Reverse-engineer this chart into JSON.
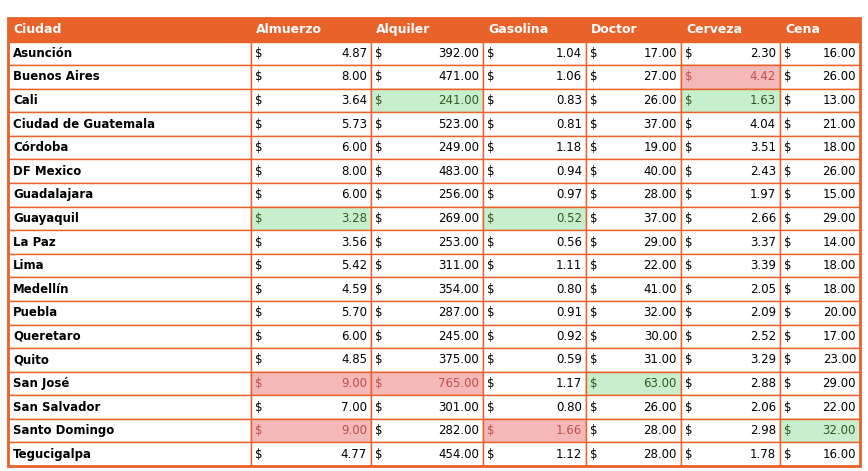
{
  "col_headers": [
    "Ciudad",
    "Almuerzo",
    "Alquiler",
    "Gasolina",
    "Doctor",
    "Cerveza",
    "Cena"
  ],
  "rows": [
    {
      "city": "Asunción",
      "almuerzo": 4.87,
      "alquiler": 392.0,
      "gasolina": 1.04,
      "doctor": 17.0,
      "cerveza": 2.3,
      "cena": 16.0,
      "bg_almuerzo": null,
      "bg_alquiler": null,
      "bg_gasolina": null,
      "bg_doctor": null,
      "bg_cerveza": null,
      "bg_cena": null
    },
    {
      "city": "Buenos Aires",
      "almuerzo": 8.0,
      "alquiler": 471.0,
      "gasolina": 1.06,
      "doctor": 27.0,
      "cerveza": 4.42,
      "cena": 26.0,
      "bg_almuerzo": null,
      "bg_alquiler": null,
      "bg_gasolina": null,
      "bg_doctor": null,
      "bg_cerveza": "#f4b8b8",
      "bg_cena": null
    },
    {
      "city": "Cali",
      "almuerzo": 3.64,
      "alquiler": 241.0,
      "gasolina": 0.83,
      "doctor": 26.0,
      "cerveza": 1.63,
      "cena": 13.0,
      "bg_almuerzo": null,
      "bg_alquiler": "#c6efce",
      "bg_gasolina": null,
      "bg_doctor": null,
      "bg_cerveza": "#c6efce",
      "bg_cena": null
    },
    {
      "city": "Ciudad de Guatemala",
      "almuerzo": 5.73,
      "alquiler": 523.0,
      "gasolina": 0.81,
      "doctor": 37.0,
      "cerveza": 4.04,
      "cena": 21.0,
      "bg_almuerzo": null,
      "bg_alquiler": null,
      "bg_gasolina": null,
      "bg_doctor": null,
      "bg_cerveza": null,
      "bg_cena": null
    },
    {
      "city": "Córdoba",
      "almuerzo": 6.0,
      "alquiler": 249.0,
      "gasolina": 1.18,
      "doctor": 19.0,
      "cerveza": 3.51,
      "cena": 18.0,
      "bg_almuerzo": null,
      "bg_alquiler": null,
      "bg_gasolina": null,
      "bg_doctor": null,
      "bg_cerveza": null,
      "bg_cena": null
    },
    {
      "city": "DF Mexico",
      "almuerzo": 8.0,
      "alquiler": 483.0,
      "gasolina": 0.94,
      "doctor": 40.0,
      "cerveza": 2.43,
      "cena": 26.0,
      "bg_almuerzo": null,
      "bg_alquiler": null,
      "bg_gasolina": null,
      "bg_doctor": null,
      "bg_cerveza": null,
      "bg_cena": null
    },
    {
      "city": "Guadalajara",
      "almuerzo": 6.0,
      "alquiler": 256.0,
      "gasolina": 0.97,
      "doctor": 28.0,
      "cerveza": 1.97,
      "cena": 15.0,
      "bg_almuerzo": null,
      "bg_alquiler": null,
      "bg_gasolina": null,
      "bg_doctor": null,
      "bg_cerveza": null,
      "bg_cena": null
    },
    {
      "city": "Guayaquil",
      "almuerzo": 3.28,
      "alquiler": 269.0,
      "gasolina": 0.52,
      "doctor": 37.0,
      "cerveza": 2.66,
      "cena": 29.0,
      "bg_almuerzo": "#c6efce",
      "bg_alquiler": null,
      "bg_gasolina": "#c6efce",
      "bg_doctor": null,
      "bg_cerveza": null,
      "bg_cena": null
    },
    {
      "city": "La Paz",
      "almuerzo": 3.56,
      "alquiler": 253.0,
      "gasolina": 0.56,
      "doctor": 29.0,
      "cerveza": 3.37,
      "cena": 14.0,
      "bg_almuerzo": null,
      "bg_alquiler": null,
      "bg_gasolina": null,
      "bg_doctor": null,
      "bg_cerveza": null,
      "bg_cena": null
    },
    {
      "city": "Lima",
      "almuerzo": 5.42,
      "alquiler": 311.0,
      "gasolina": 1.11,
      "doctor": 22.0,
      "cerveza": 3.39,
      "cena": 18.0,
      "bg_almuerzo": null,
      "bg_alquiler": null,
      "bg_gasolina": null,
      "bg_doctor": null,
      "bg_cerveza": null,
      "bg_cena": null
    },
    {
      "city": "Medellín",
      "almuerzo": 4.59,
      "alquiler": 354.0,
      "gasolina": 0.8,
      "doctor": 41.0,
      "cerveza": 2.05,
      "cena": 18.0,
      "bg_almuerzo": null,
      "bg_alquiler": null,
      "bg_gasolina": null,
      "bg_doctor": null,
      "bg_cerveza": null,
      "bg_cena": null
    },
    {
      "city": "Puebla",
      "almuerzo": 5.7,
      "alquiler": 287.0,
      "gasolina": 0.91,
      "doctor": 32.0,
      "cerveza": 2.09,
      "cena": 20.0,
      "bg_almuerzo": null,
      "bg_alquiler": null,
      "bg_gasolina": null,
      "bg_doctor": null,
      "bg_cerveza": null,
      "bg_cena": null
    },
    {
      "city": "Queretaro",
      "almuerzo": 6.0,
      "alquiler": 245.0,
      "gasolina": 0.92,
      "doctor": 30.0,
      "cerveza": 2.52,
      "cena": 17.0,
      "bg_almuerzo": null,
      "bg_alquiler": null,
      "bg_gasolina": null,
      "bg_doctor": null,
      "bg_cerveza": null,
      "bg_cena": null
    },
    {
      "city": "Quito",
      "almuerzo": 4.85,
      "alquiler": 375.0,
      "gasolina": 0.59,
      "doctor": 31.0,
      "cerveza": 3.29,
      "cena": 23.0,
      "bg_almuerzo": null,
      "bg_alquiler": null,
      "bg_gasolina": null,
      "bg_doctor": null,
      "bg_cerveza": null,
      "bg_cena": null
    },
    {
      "city": "San José",
      "almuerzo": 9.0,
      "alquiler": 765.0,
      "gasolina": 1.17,
      "doctor": 63.0,
      "cerveza": 2.88,
      "cena": 29.0,
      "bg_almuerzo": "#f4b8b8",
      "bg_alquiler": "#f4b8b8",
      "bg_gasolina": null,
      "bg_doctor": "#c6efce",
      "bg_cerveza": null,
      "bg_cena": null
    },
    {
      "city": "San Salvador",
      "almuerzo": 7.0,
      "alquiler": 301.0,
      "gasolina": 0.8,
      "doctor": 26.0,
      "cerveza": 2.06,
      "cena": 22.0,
      "bg_almuerzo": null,
      "bg_alquiler": null,
      "bg_gasolina": null,
      "bg_doctor": null,
      "bg_cerveza": null,
      "bg_cena": null
    },
    {
      "city": "Santo Domingo",
      "almuerzo": 9.0,
      "alquiler": 282.0,
      "gasolina": 1.66,
      "doctor": 28.0,
      "cerveza": 2.98,
      "cena": 32.0,
      "bg_almuerzo": "#f4b8b8",
      "bg_alquiler": null,
      "bg_gasolina": "#f4b8b8",
      "bg_doctor": null,
      "bg_cerveza": null,
      "bg_cena": "#c6efce"
    },
    {
      "city": "Tegucigalpa",
      "almuerzo": 4.77,
      "alquiler": 454.0,
      "gasolina": 1.12,
      "doctor": 28.0,
      "cerveza": 1.78,
      "cena": 16.0,
      "bg_almuerzo": null,
      "bg_alquiler": null,
      "bg_gasolina": null,
      "bg_doctor": null,
      "bg_cerveza": null,
      "bg_cena": null
    }
  ],
  "header_bg": "#e8622a",
  "header_fg": "#ffffff",
  "border_color": "#e8622a",
  "default_bg": "#ffffff",
  "red_bg": "#f4b8b8",
  "green_bg": "#c6efce",
  "red_fg": "#c0504d",
  "green_fg": "#375623",
  "black_fg": "#000000",
  "font_size": 8.5,
  "header_font_size": 9.0,
  "fig_width": 8.68,
  "fig_height": 4.71,
  "dpi": 100
}
